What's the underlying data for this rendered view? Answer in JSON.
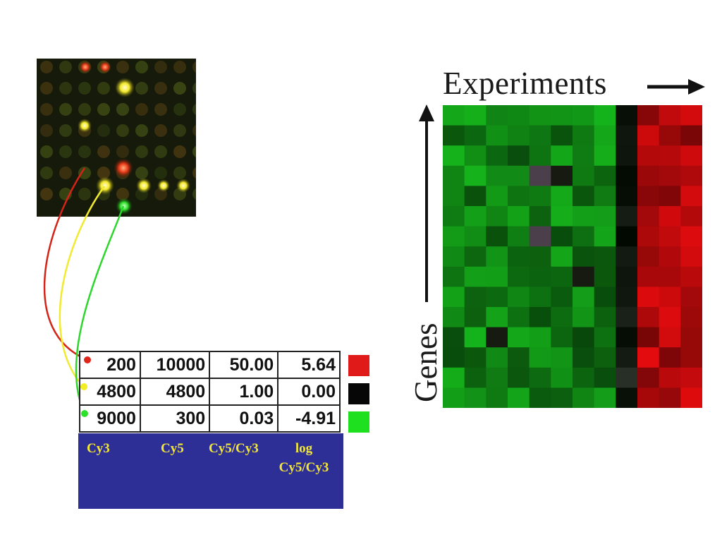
{
  "figure": {
    "experiments_label": "Experiments",
    "genes_label": "Genes"
  },
  "table": {
    "rows": [
      {
        "cy3": "200",
        "cy5": "10000",
        "ratio": "50.00",
        "log_ratio": "5.64",
        "swatch": "#e01919",
        "spot_color": "#e0261a"
      },
      {
        "cy3": "4800",
        "cy5": "4800",
        "ratio": "1.00",
        "log_ratio": "0.00",
        "swatch": "#060606",
        "spot_color": "#f2ee24"
      },
      {
        "cy3": "9000",
        "cy5": "300",
        "ratio": "0.03",
        "log_ratio": "-4.91",
        "swatch": "#1fe01f",
        "spot_color": "#2ee02a"
      }
    ]
  },
  "column_labels": {
    "cy3": "Cy3",
    "cy5": "Cy5",
    "ratio": "Cy5/Cy3",
    "log_line1": "log",
    "log_line2": "Cy5/Cy3"
  },
  "colors": {
    "microarray_background": "#161a0a",
    "label_box": "#2e2f96",
    "label_text": "#f2e637",
    "heatmap_green": "#1e9b22",
    "heatmap_red": "#c41a1a"
  }
}
